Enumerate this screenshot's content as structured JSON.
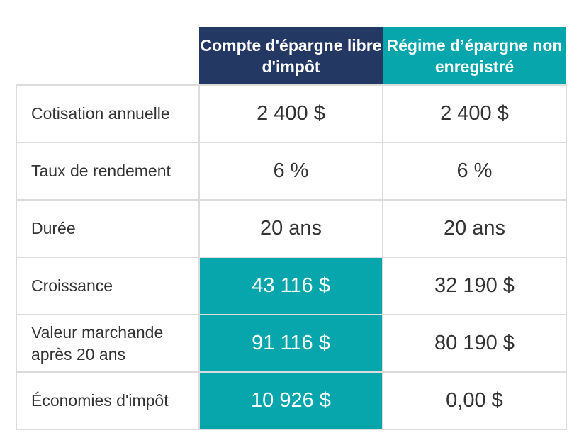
{
  "table": {
    "headers": {
      "tfsa": "Compte d'épargne libre d'impôt",
      "non_registered": "Régime d’épargne non enregistré"
    },
    "highlight_color": "#07a5ac",
    "tfsa_header_color": "#243864",
    "rows": [
      {
        "label": "Cotisation annuelle",
        "tfsa": "2 400 $",
        "non_registered": "2 400 $"
      },
      {
        "label": "Taux de rendement",
        "tfsa": "6 %",
        "non_registered": "6 %"
      },
      {
        "label": "Durée",
        "tfsa": "20 ans",
        "non_registered": "20 ans"
      },
      {
        "label": "Croissance",
        "tfsa": "43 116 $",
        "non_registered": "32 190 $"
      },
      {
        "label": "Valeur marchande après 20 ans",
        "tfsa": "91 116 $",
        "non_registered": "80 190 $"
      },
      {
        "label": "Économies d'impôt",
        "tfsa": "10 926 $",
        "non_registered": "0,00 $"
      }
    ]
  }
}
